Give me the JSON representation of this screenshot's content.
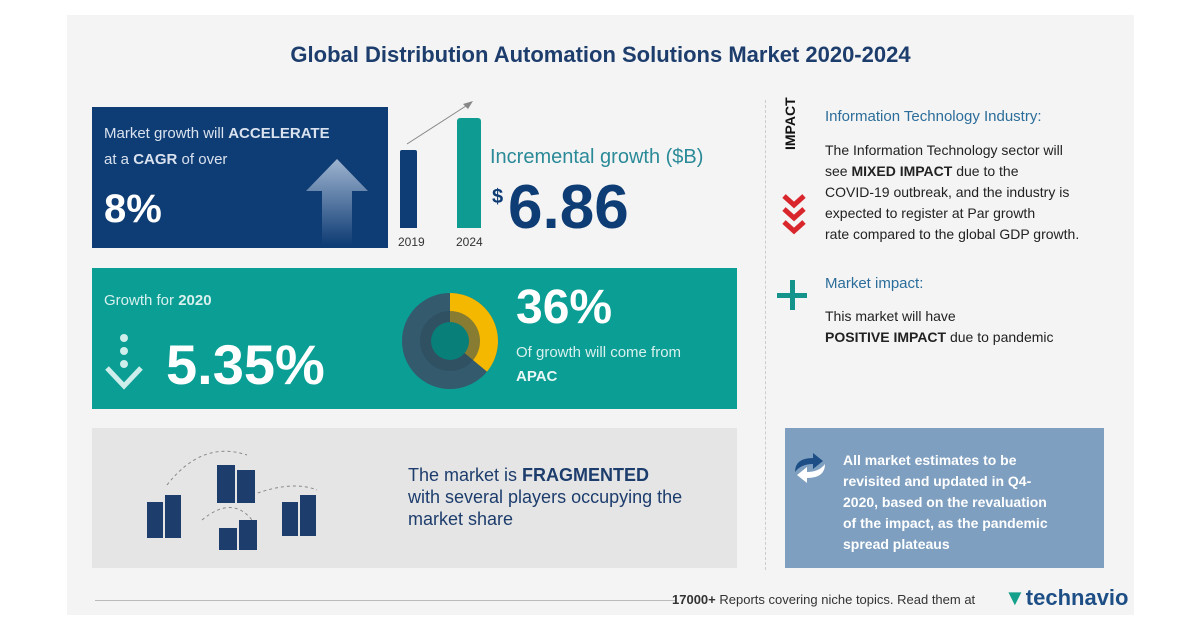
{
  "title": "Global Distribution Automation Solutions Market 2020-2024",
  "cagr": {
    "line1_pre": "Market growth will",
    "line1_bold": "ACCELERATE",
    "line2_pre": "at a",
    "line2_bold": "CAGR",
    "line2_post": "of over",
    "value": "8%"
  },
  "incremental": {
    "years": [
      "2019",
      "2024"
    ],
    "label": "Incremental growth ($B)",
    "currency": "$",
    "value": "6.86"
  },
  "growth2020": {
    "label_pre": "Growth for",
    "label_bold": "2020",
    "value": "5.35%"
  },
  "region": {
    "value": "36%",
    "text": "Of growth will come from",
    "region": "APAC",
    "share_percent": 36
  },
  "fragmented": {
    "pre": "The market is",
    "bold": "FRAGMENTED",
    "line2": "with several players occupying the",
    "line3": "market share"
  },
  "impact": {
    "vertical_label": "IMPACT",
    "heading": "Information Technology Industry:",
    "l1": "The Information Technology sector will",
    "l2_pre": "see",
    "l2_bold": "MIXED IMPACT",
    "l2_post": "due to the",
    "l3": "COVID-19 outbreak, and the industry is",
    "l4": "expected to register at Par growth",
    "l5": "rate compared to the global GDP growth."
  },
  "market_impact": {
    "heading": "Market impact:",
    "l1": "This market will have",
    "l2_bold": "POSITIVE IMPACT",
    "l2_post": "due to pandemic"
  },
  "notice": {
    "lines": [
      "All market estimates to be",
      "revisited and updated in Q4-",
      "2020, based on the revaluation",
      "of the impact, as the pandemic",
      "spread plateaus"
    ]
  },
  "footer": {
    "bold": "17000+",
    "text": "Reports covering niche topics. Read them at",
    "brand": "technavio"
  },
  "colors": {
    "navy": "#0e3c74",
    "teal": "#0a9e94",
    "yellow": "#f5b800",
    "red": "#d9262c"
  }
}
